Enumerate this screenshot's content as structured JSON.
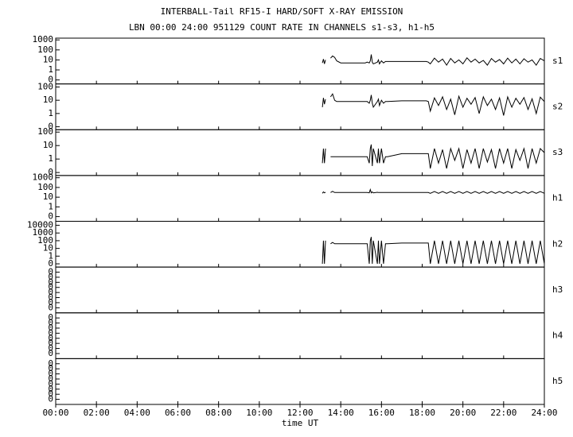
{
  "title": "INTERBALL-Tail RF15-I HARD/SOFT X-RAY EMISSION",
  "subtitle": "LBN 00:00 24:00 951129  COUNT RATE IN CHANNELS s1-s3, h1-h5",
  "x_label": "time UT",
  "xlim": [
    0,
    24
  ],
  "xticks": [
    {
      "value": 0,
      "label": "00:00"
    },
    {
      "value": 2,
      "label": "02:00"
    },
    {
      "value": 4,
      "label": "04:00"
    },
    {
      "value": 6,
      "label": "06:00"
    },
    {
      "value": 8,
      "label": "08:00"
    },
    {
      "value": 10,
      "label": "10:00"
    },
    {
      "value": 12,
      "label": "12:00"
    },
    {
      "value": 14,
      "label": "14:00"
    },
    {
      "value": 16,
      "label": "16:00"
    },
    {
      "value": 18,
      "label": "18:00"
    },
    {
      "value": 20,
      "label": "20:00"
    },
    {
      "value": 22,
      "label": "22:00"
    },
    {
      "value": 24,
      "label": "24:00"
    }
  ],
  "chart_data": [
    {
      "type": "line",
      "label": "s1",
      "log": true,
      "color": "#000000",
      "ylim": [
        0.04,
        1500
      ],
      "yticks": [
        1000,
        100,
        10,
        1,
        {
          "value": 0.1,
          "label": "0"
        }
      ],
      "x": [
        13.1,
        13.15,
        13.2,
        13.25,
        13.3,
        13.5,
        13.6,
        13.7,
        13.8,
        14.0,
        14.6,
        15.2,
        15.3,
        15.4,
        15.45,
        15.5,
        15.55,
        15.6,
        15.8,
        15.85,
        15.9,
        16.0,
        16.1,
        16.2,
        16.3,
        17.0,
        18.2,
        18.3,
        18.4,
        18.6,
        18.8,
        19.0,
        19.2,
        19.4,
        19.6,
        19.8,
        20.0,
        20.2,
        20.4,
        20.6,
        20.8,
        21.0,
        21.2,
        21.4,
        21.6,
        21.8,
        22.0,
        22.2,
        22.4,
        22.6,
        22.8,
        23.0,
        23.2,
        23.4,
        23.6,
        23.8,
        24.0
      ],
      "values": [
        5,
        12,
        4,
        10,
        null,
        15,
        25,
        18,
        8,
        5,
        5,
        5,
        6,
        5,
        8,
        35,
        6,
        4,
        6,
        10,
        4,
        8,
        5,
        7,
        7,
        7,
        7,
        6,
        4,
        15,
        6,
        12,
        3,
        14,
        5,
        10,
        4,
        16,
        6,
        12,
        5,
        9,
        3,
        14,
        6,
        11,
        4,
        15,
        5,
        12,
        4,
        13,
        6,
        10,
        3,
        14,
        8
      ]
    },
    {
      "type": "line",
      "label": "s2",
      "log": true,
      "color": "#000000",
      "ylim": [
        0.06,
        170
      ],
      "yticks": [
        100,
        10,
        1,
        {
          "value": 0.1,
          "label": "0"
        }
      ],
      "x": [
        13.1,
        13.15,
        13.2,
        13.25,
        13.3,
        13.5,
        13.6,
        13.7,
        13.8,
        14.0,
        14.6,
        15.2,
        15.3,
        15.4,
        15.45,
        15.5,
        15.55,
        15.6,
        15.8,
        15.85,
        15.9,
        16.0,
        16.1,
        16.2,
        16.3,
        17.0,
        18.2,
        18.3,
        18.4,
        18.6,
        18.8,
        19.0,
        19.2,
        19.4,
        19.6,
        19.8,
        20.0,
        20.2,
        20.4,
        20.6,
        20.8,
        21.0,
        21.2,
        21.4,
        21.6,
        21.8,
        22.0,
        22.2,
        22.4,
        22.6,
        22.8,
        23.0,
        23.2,
        23.4,
        23.6,
        23.8,
        24.0
      ],
      "values": [
        3,
        15,
        5,
        12,
        null,
        18,
        30,
        10,
        8,
        8,
        8,
        8,
        8,
        6,
        10,
        25,
        6,
        3,
        8,
        12,
        4,
        10,
        6,
        8,
        8,
        9,
        9,
        8,
        1.5,
        15,
        4,
        18,
        2,
        12,
        0.8,
        20,
        3,
        14,
        5,
        16,
        1,
        18,
        4,
        12,
        2,
        15,
        0.7,
        18,
        3,
        14,
        5,
        16,
        2,
        13,
        1,
        17,
        8
      ]
    },
    {
      "type": "line",
      "label": "s3",
      "log": true,
      "color": "#000000",
      "ylim": [
        0.06,
        150
      ],
      "yticks": [
        100,
        10,
        1,
        {
          "value": 0.1,
          "label": "0"
        }
      ],
      "x": [
        13.1,
        13.15,
        13.2,
        13.25,
        13.3,
        13.5,
        13.6,
        13.7,
        13.8,
        14.0,
        14.6,
        15.2,
        15.3,
        15.4,
        15.45,
        15.5,
        15.55,
        15.6,
        15.8,
        15.85,
        15.9,
        16.0,
        16.1,
        16.2,
        16.3,
        17.0,
        18.2,
        18.3,
        18.4,
        18.6,
        18.8,
        19.0,
        19.2,
        19.4,
        19.6,
        19.8,
        20.0,
        20.2,
        20.4,
        20.6,
        20.8,
        21.0,
        21.2,
        21.4,
        21.6,
        21.8,
        22.0,
        22.2,
        22.4,
        22.6,
        22.8,
        23.0,
        23.2,
        23.4,
        23.6,
        23.8,
        24.0
      ],
      "values": [
        0.5,
        6,
        0.5,
        6,
        null,
        1.5,
        1.5,
        1.5,
        1.5,
        1.5,
        1.5,
        1.5,
        1.5,
        0.5,
        6,
        12,
        0.3,
        6,
        0.5,
        6,
        0.5,
        6,
        0.5,
        1.5,
        1.5,
        2.5,
        2.5,
        2.5,
        0.2,
        6,
        0.5,
        5,
        0.2,
        6,
        0.8,
        6,
        0.2,
        5,
        0.5,
        6,
        0.2,
        6,
        0.6,
        5,
        0.2,
        6,
        0.5,
        6,
        0.2,
        5,
        0.8,
        6,
        0.2,
        6,
        0.5,
        6,
        3
      ]
    },
    {
      "type": "line",
      "label": "h1",
      "log": true,
      "color": "#000000",
      "ylim": [
        0.033,
        1700
      ],
      "yticks": [
        1000,
        100,
        10,
        1,
        {
          "value": 0.1,
          "label": "0"
        }
      ],
      "x": [
        13.1,
        13.15,
        13.2,
        13.25,
        13.3,
        13.5,
        13.6,
        13.7,
        13.8,
        14.0,
        14.6,
        15.2,
        15.3,
        15.4,
        15.45,
        15.5,
        15.55,
        15.6,
        15.8,
        15.85,
        15.9,
        16.0,
        16.1,
        16.2,
        16.3,
        17.0,
        18.2,
        18.3,
        18.4,
        18.6,
        18.8,
        19.0,
        19.2,
        19.4,
        19.6,
        19.8,
        20.0,
        20.2,
        20.4,
        20.6,
        20.8,
        21.0,
        21.2,
        21.4,
        21.6,
        21.8,
        22.0,
        22.2,
        22.4,
        22.6,
        22.8,
        23.0,
        23.2,
        23.4,
        23.6,
        23.8,
        24.0
      ],
      "values": [
        25,
        35,
        28,
        32,
        null,
        30,
        40,
        30,
        30,
        30,
        30,
        30,
        30,
        28,
        60,
        28,
        35,
        28,
        32,
        30,
        30,
        30,
        30,
        30,
        30,
        30,
        30,
        30,
        25,
        38,
        25,
        38,
        25,
        38,
        25,
        38,
        25,
        38,
        25,
        38,
        25,
        38,
        25,
        38,
        25,
        38,
        25,
        38,
        25,
        38,
        25,
        38,
        25,
        38,
        25,
        38,
        25
      ]
    },
    {
      "type": "line",
      "label": "h2",
      "log": true,
      "color": "#000000",
      "ylim": [
        0.038,
        33000
      ],
      "yticks": [
        10000,
        1000,
        100,
        10,
        1,
        {
          "value": 0.1,
          "label": "0"
        }
      ],
      "x": [
        13.1,
        13.15,
        13.2,
        13.25,
        13.3,
        13.5,
        13.6,
        13.7,
        13.8,
        14.0,
        14.6,
        15.2,
        15.3,
        15.4,
        15.45,
        15.5,
        15.55,
        15.6,
        15.8,
        15.85,
        15.9,
        16.0,
        16.1,
        16.2,
        16.3,
        17.0,
        18.2,
        18.3,
        18.4,
        18.6,
        18.8,
        19.0,
        19.2,
        19.4,
        19.6,
        19.8,
        20.0,
        20.2,
        20.4,
        20.6,
        20.8,
        21.0,
        21.2,
        21.4,
        21.6,
        21.8,
        22.0,
        22.2,
        22.4,
        22.6,
        22.8,
        23.0,
        23.2,
        23.4,
        23.6,
        23.8,
        24.0
      ],
      "values": [
        0.1,
        100,
        0.1,
        100,
        null,
        40,
        60,
        40,
        40,
        40,
        40,
        40,
        40,
        0.1,
        100,
        300,
        0.1,
        100,
        0.1,
        100,
        0.1,
        100,
        0.1,
        40,
        40,
        50,
        50,
        50,
        0.1,
        100,
        0.1,
        100,
        0.1,
        100,
        0.1,
        100,
        0.1,
        100,
        0.1,
        100,
        0.1,
        100,
        0.1,
        100,
        0.1,
        100,
        0.1,
        100,
        0.1,
        100,
        0.1,
        100,
        0.1,
        100,
        0.1,
        100,
        0.1
      ]
    },
    {
      "type": "line",
      "label": "h3",
      "log": false,
      "ylim": [
        0,
        0.9
      ],
      "yticks": [
        {
          "value": 0.1,
          "label": "0"
        },
        {
          "value": 0.2,
          "label": "0"
        },
        {
          "value": 0.3,
          "label": "0"
        },
        {
          "value": 0.4,
          "label": "0"
        },
        {
          "value": 0.5,
          "label": "0"
        },
        {
          "value": 0.6,
          "label": "0"
        },
        {
          "value": 0.7,
          "label": "0"
        },
        {
          "value": 0.8,
          "label": "0"
        }
      ]
    },
    {
      "type": "line",
      "label": "h4",
      "log": false,
      "ylim": [
        0,
        0.9
      ],
      "yticks": [
        {
          "value": 0.1,
          "label": "0"
        },
        {
          "value": 0.2,
          "label": "0"
        },
        {
          "value": 0.3,
          "label": "0"
        },
        {
          "value": 0.4,
          "label": "0"
        },
        {
          "value": 0.5,
          "label": "0"
        },
        {
          "value": 0.6,
          "label": "0"
        },
        {
          "value": 0.7,
          "label": "0"
        },
        {
          "value": 0.8,
          "label": "0"
        }
      ]
    },
    {
      "type": "line",
      "label": "h5",
      "log": false,
      "ylim": [
        0,
        0.9
      ],
      "yticks": [
        {
          "value": 0.1,
          "label": "0"
        },
        {
          "value": 0.2,
          "label": "0"
        },
        {
          "value": 0.3,
          "label": "0"
        },
        {
          "value": 0.4,
          "label": "0"
        },
        {
          "value": 0.5,
          "label": "0"
        },
        {
          "value": 0.6,
          "label": "0"
        },
        {
          "value": 0.7,
          "label": "0"
        },
        {
          "value": 0.8,
          "label": "0"
        }
      ]
    }
  ]
}
